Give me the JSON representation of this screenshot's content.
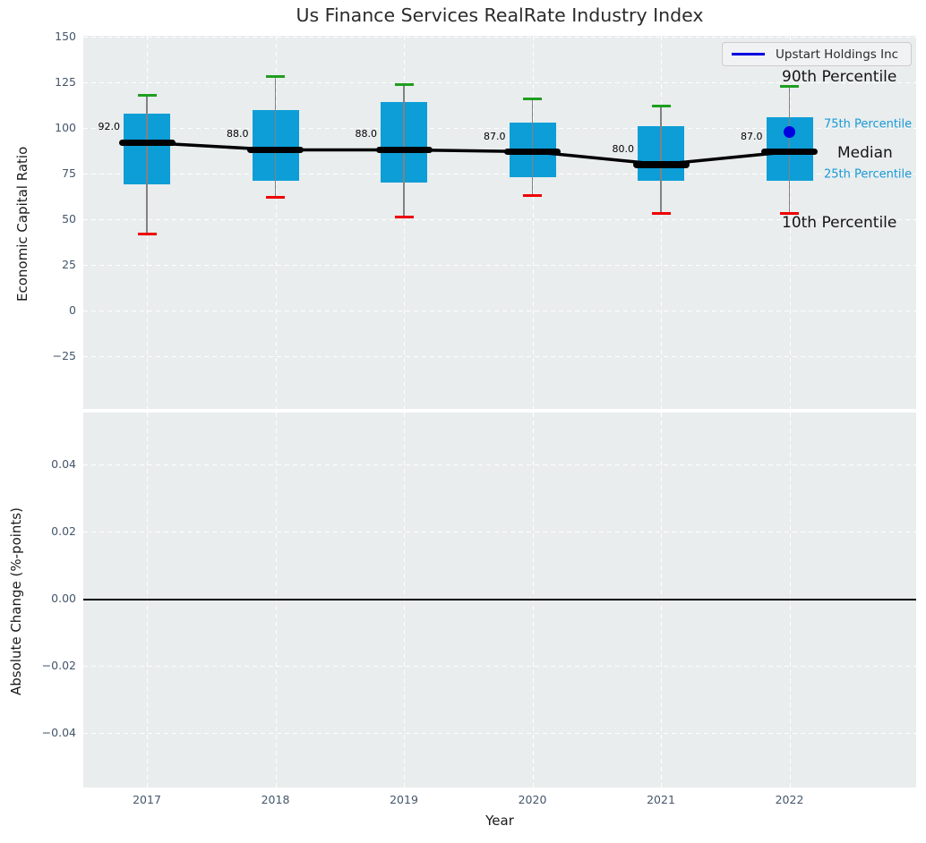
{
  "title": "Us Finance Services RealRate Industry Index",
  "xlabel": "Year",
  "legend": {
    "label": "Upstart Holdings Inc"
  },
  "colors": {
    "box_fill": "#0d9ed7",
    "cap_top": "#1f9e1f",
    "cap_bottom": "#ee0000",
    "median": "#000000",
    "company_point": "#0000e0",
    "annotation_minor": "#189ad6",
    "axes_bg": "#e9edee"
  },
  "top_axis": {
    "ylabel": "Economic Capital Ratio",
    "ytick_labels": [
      "150",
      "125",
      "100",
      "75",
      "50",
      "25",
      "0",
      "−25"
    ],
    "ytick_values": [
      150,
      125,
      100,
      75,
      50,
      25,
      0,
      -25
    ],
    "ylim": [
      -54,
      151
    ]
  },
  "bottom_axis": {
    "ylabel": "Absolute Change (%-points)",
    "ytick_labels": [
      "0.04",
      "0.02",
      "0.00",
      "−0.02",
      "−0.04"
    ],
    "ytick_values": [
      0.04,
      0.02,
      0,
      -0.02,
      -0.04
    ],
    "ylim": [
      -0.056,
      0.056
    ],
    "zero_line_value": 0
  },
  "annotations": [
    {
      "label": "90th Percentile",
      "size": "major"
    },
    {
      "label": "75th Percentile",
      "size": "minor"
    },
    {
      "label": "Median",
      "size": "major"
    },
    {
      "label": "25th Percentile",
      "size": "minor"
    },
    {
      "label": "10th Percentile",
      "size": "major"
    }
  ],
  "chart_data": {
    "type": "boxplot",
    "title": "Us Finance Services RealRate Industry Index",
    "xlabel": "Year",
    "ylabel_top": "Economic Capital Ratio",
    "ylabel_bottom": "Absolute Change (%-points)",
    "categories": [
      "2017",
      "2018",
      "2019",
      "2020",
      "2021",
      "2022"
    ],
    "boxes": [
      {
        "year": "2017",
        "p10": 42,
        "p25": 69,
        "median": 92,
        "p75": 108,
        "p90": 118,
        "median_label": "92.0"
      },
      {
        "year": "2018",
        "p10": 62,
        "p25": 71,
        "median": 88,
        "p75": 110,
        "p90": 128,
        "median_label": "88.0"
      },
      {
        "year": "2019",
        "p10": 51,
        "p25": 70,
        "median": 88,
        "p75": 114,
        "p90": 124,
        "median_label": "88.0"
      },
      {
        "year": "2020",
        "p10": 63,
        "p25": 73,
        "median": 87,
        "p75": 103,
        "p90": 116,
        "median_label": "87.0"
      },
      {
        "year": "2021",
        "p10": 53,
        "p25": 71,
        "median": 80,
        "p75": 101,
        "p90": 112,
        "median_label": "80.0"
      },
      {
        "year": "2022",
        "p10": 53,
        "p25": 71,
        "median": 87,
        "p75": 106,
        "p90": 123,
        "median_label": "87.0"
      }
    ],
    "median_series": [
      92,
      88,
      88,
      87,
      80,
      87
    ],
    "company_point": {
      "name": "Upstart Holdings Inc",
      "year": "2022",
      "value": 98
    },
    "grid": "white dashed on light gray",
    "legend_position": "upper right",
    "bottom_subplot": {
      "content": "empty, horizontal zero line at 0.00"
    }
  }
}
